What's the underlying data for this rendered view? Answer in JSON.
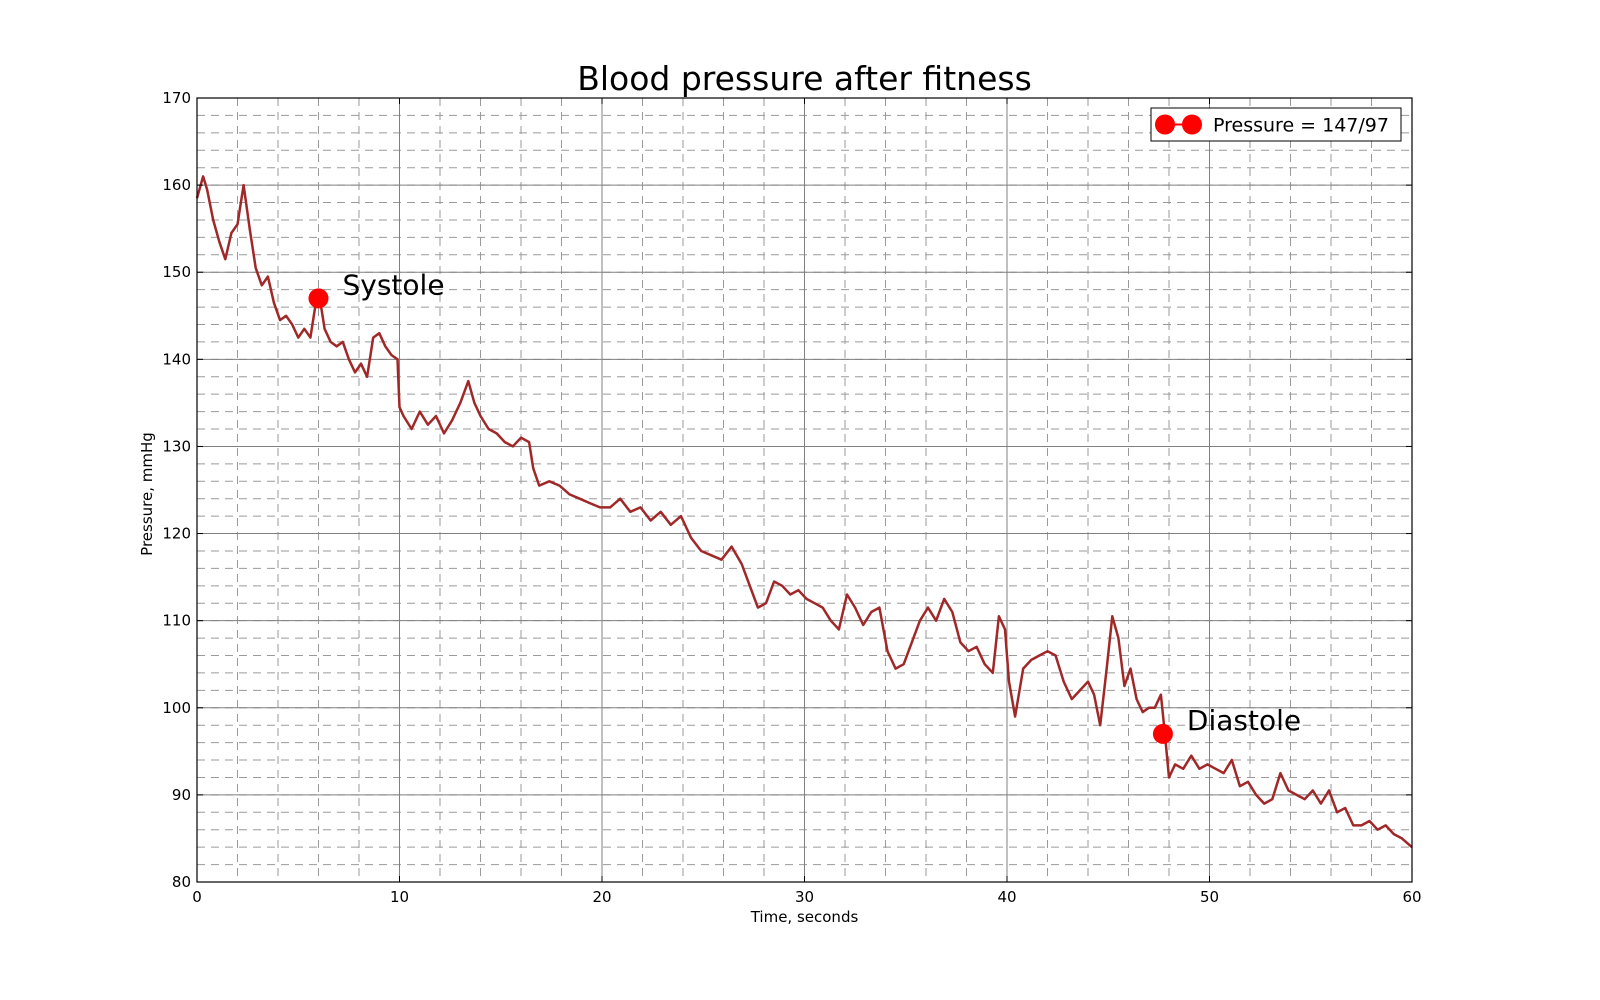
{
  "chart_data": {
    "type": "line",
    "title": "Blood pressure after fitness",
    "xlabel": "Time, seconds",
    "ylabel": "Pressure, mmHg",
    "xlim": [
      0,
      60
    ],
    "ylim": [
      80,
      170
    ],
    "x_ticks": [
      0,
      10,
      20,
      30,
      40,
      50,
      60
    ],
    "y_ticks": [
      80,
      90,
      100,
      110,
      120,
      130,
      140,
      150,
      160,
      170
    ],
    "grid": true,
    "grid_major": "solid",
    "grid_minor": "dashed",
    "legend_position": "top-right",
    "legend": {
      "label": "Pressure = 147/97",
      "color": "#ff0000"
    },
    "series": [
      {
        "color": "#a02828",
        "x": [
          0,
          0.3,
          0.5,
          0.8,
          1.1,
          1.4,
          1.7,
          2.0,
          2.3,
          2.6,
          2.9,
          3.2,
          3.5,
          3.8,
          4.1,
          4.4,
          4.7,
          5.0,
          5.3,
          5.6,
          5.9,
          6.1,
          6.3,
          6.6,
          6.9,
          7.2,
          7.5,
          7.8,
          8.1,
          8.4,
          8.7,
          9.0,
          9.3,
          9.6,
          9.9,
          10.0,
          10.2,
          10.6,
          11.0,
          11.4,
          11.8,
          12.2,
          12.6,
          13.0,
          13.4,
          13.7,
          14.0,
          14.4,
          14.8,
          15.2,
          15.6,
          16.0,
          16.4,
          16.6,
          16.9,
          17.4,
          17.9,
          18.4,
          18.9,
          19.4,
          19.9,
          20.4,
          20.9,
          21.4,
          21.9,
          22.4,
          22.9,
          23.4,
          23.9,
          24.4,
          24.9,
          25.4,
          25.9,
          26.4,
          26.9,
          27.3,
          27.7,
          28.1,
          28.5,
          28.9,
          29.3,
          29.7,
          30.1,
          30.5,
          30.9,
          31.3,
          31.7,
          32.1,
          32.5,
          32.9,
          33.3,
          33.7,
          34.1,
          34.5,
          34.9,
          35.3,
          35.7,
          36.1,
          36.5,
          36.9,
          37.3,
          37.7,
          38.1,
          38.5,
          38.9,
          39.3,
          39.6,
          39.9,
          40.1,
          40.4,
          40.8,
          41.2,
          41.6,
          42.0,
          42.4,
          42.8,
          43.2,
          43.6,
          44.0,
          44.3,
          44.6,
          44.9,
          45.2,
          45.5,
          45.8,
          46.1,
          46.4,
          46.7,
          47.0,
          47.3,
          47.6,
          47.8,
          48.0,
          48.3,
          48.7,
          49.1,
          49.5,
          49.9,
          50.3,
          50.7,
          51.1,
          51.5,
          51.9,
          52.3,
          52.7,
          53.1,
          53.5,
          53.9,
          54.3,
          54.7,
          55.1,
          55.5,
          55.9,
          56.3,
          56.7,
          57.1,
          57.5,
          57.9,
          58.3,
          58.7,
          59.1,
          59.5,
          60.0
        ],
        "y": [
          158.5,
          161,
          159.5,
          156,
          153.5,
          151.5,
          154.5,
          155.5,
          160,
          155,
          150.5,
          148.5,
          149.5,
          146.5,
          144.5,
          145,
          144,
          142.5,
          143.5,
          142.5,
          147,
          146.5,
          143.5,
          142,
          141.5,
          142,
          140,
          138.5,
          139.5,
          138,
          142.5,
          143,
          141.5,
          140.5,
          140,
          134.5,
          133.5,
          132,
          134,
          132.5,
          133.5,
          131.5,
          133,
          135,
          137.5,
          135,
          133.5,
          132,
          131.5,
          130.5,
          130,
          131,
          130.5,
          127.5,
          125.5,
          126,
          125.5,
          124.5,
          124,
          123.5,
          123,
          123,
          124,
          122.5,
          123,
          121.5,
          122.5,
          121,
          122,
          119.5,
          118,
          117.5,
          117,
          118.5,
          116.5,
          114,
          111.5,
          112,
          114.5,
          114,
          113,
          113.5,
          112.5,
          112,
          111.5,
          110,
          109,
          113,
          111.5,
          109.5,
          111,
          111.5,
          106.5,
          104.5,
          105,
          107.5,
          110,
          111.5,
          110,
          112.5,
          111,
          107.5,
          106.5,
          107,
          105,
          104,
          110.5,
          109,
          103,
          99,
          104.5,
          105.5,
          106,
          106.5,
          106,
          103,
          101,
          102,
          103,
          101.5,
          98,
          104,
          110.5,
          108,
          102.5,
          104.5,
          101,
          99.5,
          100,
          100,
          101.5,
          97,
          92,
          93.5,
          93,
          94.5,
          93,
          93.5,
          93,
          92.5,
          94,
          91,
          91.5,
          90,
          89,
          89.5,
          92.5,
          90.5,
          90,
          89.5,
          90.5,
          89,
          90.5,
          88,
          88.5,
          86.5,
          86.5,
          87,
          86,
          86.5,
          85.5,
          85,
          84
        ]
      }
    ],
    "annotations": [
      {
        "label": "Systole",
        "x": 6.0,
        "y": 147
      },
      {
        "label": "Diastole",
        "x": 47.7,
        "y": 97
      }
    ]
  }
}
